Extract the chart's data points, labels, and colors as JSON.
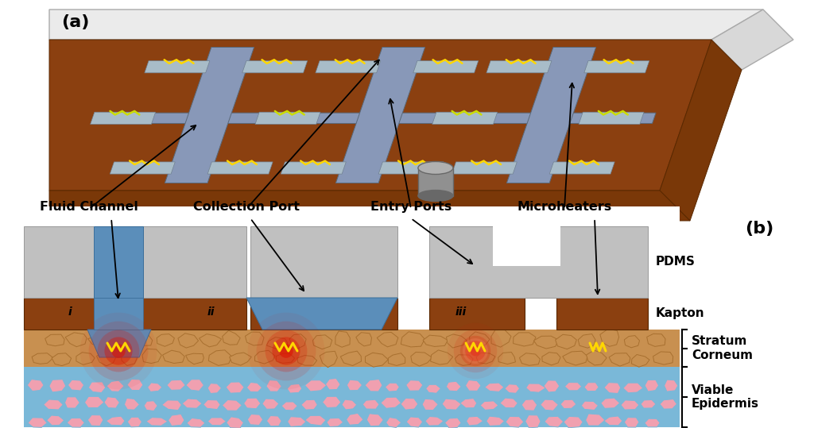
{
  "fig_width": 10.24,
  "fig_height": 5.39,
  "bg_color": "#ffffff",
  "label_a": "(a)",
  "label_b": "(b)",
  "annot": {
    "fluid_channel": "Fluid Channel",
    "collection_port": "Collection Port",
    "entry_ports": "Entry Ports",
    "microheaters": "Microheaters",
    "pdms": "PDMS",
    "kapton": "Kapton",
    "stratum_corneum": "Stratum\nCorneum",
    "viable_epidermis": "Viable\nEpidermis"
  },
  "colors": {
    "kapton_brown": "#8B4010",
    "kapton_dark": "#7A3808",
    "pdms_gray": "#C0C0C0",
    "pdms_dark": "#A8A8A8",
    "channel_gray": "#8898A8",
    "channel_light": "#AABCCC",
    "fluid_blue": "#5B8EBA",
    "fluid_blue2": "#7AACD8",
    "heater_yellow": "#FFD700",
    "heater_green": "#CCDD00",
    "sc_tan": "#C89050",
    "sc_dark": "#A87030",
    "ve_blue": "#7AB8D8",
    "ve_pink": "#F0A0B0",
    "heat_red": "#CC1100",
    "glass_top": "#EBEBEB",
    "glass_side": "#D8D8D8",
    "box_brown_top": "#9B5520",
    "box_brown_side": "#7A3808",
    "cyl_gray": "#909090",
    "cyl_dark": "#686868"
  }
}
